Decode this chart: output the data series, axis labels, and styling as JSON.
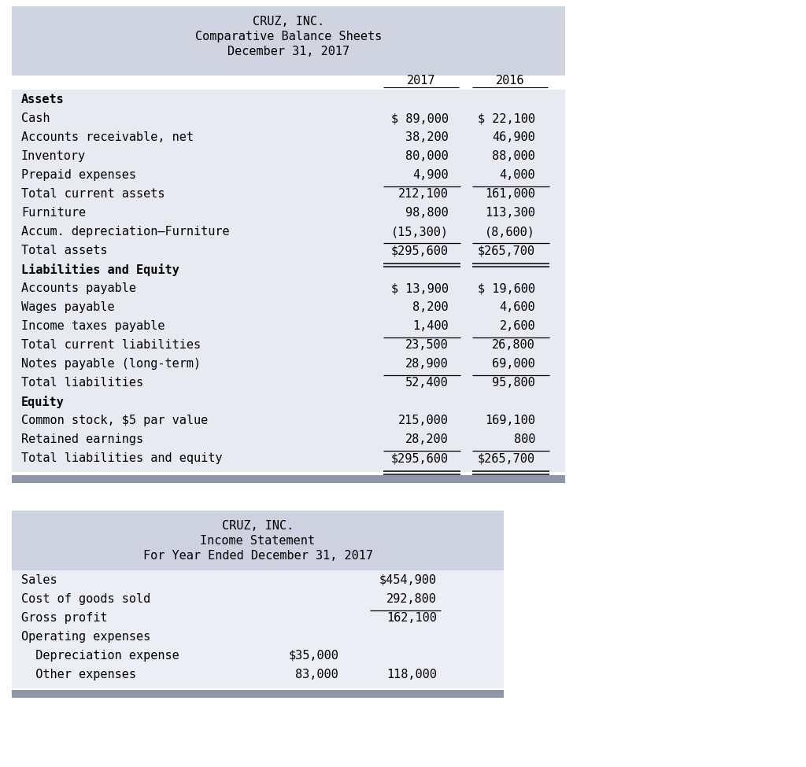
{
  "bg_color": "#ffffff",
  "header_bg": "#d0d4e0",
  "table1_bg": "#e8eaf2",
  "table2_header_bg": "#cdd1e0",
  "table2_body_bg": "#eceef5",
  "sep_color": "#9096a8",
  "table1": {
    "title_lines": [
      "CRUZ, INC.",
      "Comparative Balance Sheets",
      "December 31, 2017"
    ],
    "col_headers": [
      "2017",
      "2016"
    ],
    "rows": [
      {
        "label": "Assets",
        "v2017": "",
        "v2016": "",
        "bold": true,
        "underline_after": false,
        "double_underline": false
      },
      {
        "label": "Cash",
        "v2017": "$ 89,000",
        "v2016": "$ 22,100",
        "bold": false,
        "underline_after": false,
        "double_underline": false
      },
      {
        "label": "Accounts receivable, net",
        "v2017": "38,200",
        "v2016": "46,900",
        "bold": false,
        "underline_after": false,
        "double_underline": false
      },
      {
        "label": "Inventory",
        "v2017": "80,000",
        "v2016": "88,000",
        "bold": false,
        "underline_after": false,
        "double_underline": false
      },
      {
        "label": "Prepaid expenses",
        "v2017": "4,900",
        "v2016": "4,000",
        "bold": false,
        "underline_after": true,
        "double_underline": false
      },
      {
        "label": "Total current assets",
        "v2017": "212,100",
        "v2016": "161,000",
        "bold": false,
        "underline_after": false,
        "double_underline": false
      },
      {
        "label": "Furniture",
        "v2017": "98,800",
        "v2016": "113,300",
        "bold": false,
        "underline_after": false,
        "double_underline": false
      },
      {
        "label": "Accum. depreciation–Furniture",
        "v2017": "(15,300)",
        "v2016": "(8,600)",
        "bold": false,
        "underline_after": true,
        "double_underline": false
      },
      {
        "label": "Total assets",
        "v2017": "$295,600",
        "v2016": "$265,700",
        "bold": false,
        "underline_after": false,
        "double_underline": true
      },
      {
        "label": "Liabilities and Equity",
        "v2017": "",
        "v2016": "",
        "bold": true,
        "underline_after": false,
        "double_underline": false
      },
      {
        "label": "Accounts payable",
        "v2017": "$ 13,900",
        "v2016": "$ 19,600",
        "bold": false,
        "underline_after": false,
        "double_underline": false
      },
      {
        "label": "Wages payable",
        "v2017": "8,200",
        "v2016": "4,600",
        "bold": false,
        "underline_after": false,
        "double_underline": false
      },
      {
        "label": "Income taxes payable",
        "v2017": "1,400",
        "v2016": "2,600",
        "bold": false,
        "underline_after": true,
        "double_underline": false
      },
      {
        "label": "Total current liabilities",
        "v2017": "23,500",
        "v2016": "26,800",
        "bold": false,
        "underline_after": false,
        "double_underline": false
      },
      {
        "label": "Notes payable (long-term)",
        "v2017": "28,900",
        "v2016": "69,000",
        "bold": false,
        "underline_after": true,
        "double_underline": false
      },
      {
        "label": "Total liabilities",
        "v2017": "52,400",
        "v2016": "95,800",
        "bold": false,
        "underline_after": false,
        "double_underline": false
      },
      {
        "label": "Equity",
        "v2017": "",
        "v2016": "",
        "bold": true,
        "underline_after": false,
        "double_underline": false
      },
      {
        "label": "Common stock, $5 par value",
        "v2017": "215,000",
        "v2016": "169,100",
        "bold": false,
        "underline_after": false,
        "double_underline": false
      },
      {
        "label": "Retained earnings",
        "v2017": "28,200",
        "v2016": "800",
        "bold": false,
        "underline_after": true,
        "double_underline": false
      },
      {
        "label": "Total liabilities and equity",
        "v2017": "$295,600",
        "v2016": "$265,700",
        "bold": false,
        "underline_after": false,
        "double_underline": true
      }
    ]
  },
  "table2": {
    "title_lines": [
      "CRUZ, INC.",
      "Income Statement",
      "For Year Ended December 31, 2017"
    ],
    "rows": [
      {
        "label": "Sales",
        "col1": "",
        "col2": "$454,900",
        "underline_after": false
      },
      {
        "label": "Cost of goods sold",
        "col1": "",
        "col2": "292,800",
        "underline_after": true
      },
      {
        "label": "Gross profit",
        "col1": "",
        "col2": "162,100",
        "underline_after": false
      },
      {
        "label": "Operating expenses",
        "col1": "",
        "col2": "",
        "underline_after": false
      },
      {
        "label": "  Depreciation expense",
        "col1": "$35,000",
        "col2": "",
        "underline_after": false
      },
      {
        "label": "  Other expenses",
        "col1": "83,000",
        "col2": "118,000",
        "underline_after": false
      }
    ]
  }
}
